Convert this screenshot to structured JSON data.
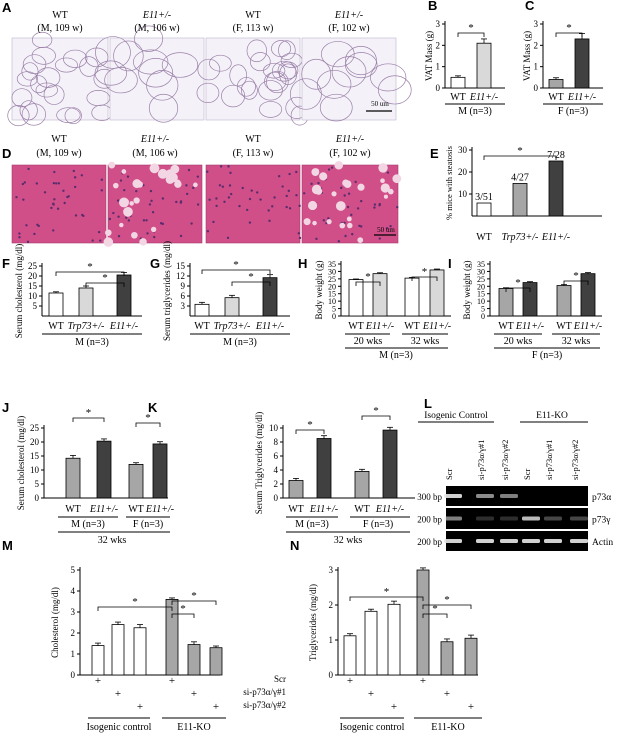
{
  "colors": {
    "white": "#ffffff",
    "light": "#d9d9d9",
    "mid": "#a6a6a6",
    "dark": "#404040",
    "gel": "#000000",
    "band": "#e8e8e8",
    "adipose": "#f4f2f8",
    "liver": "#d04f88"
  },
  "chart_data": [
    {
      "id": "A",
      "label": "A",
      "type": "image",
      "description_kind": "adipose histology",
      "panels": [
        {
          "line1": "WT",
          "line2": "(M, 109 w)"
        },
        {
          "line1": "E11+/-",
          "line2": "(M, 106 w)"
        },
        {
          "line1": "WT",
          "line2": "(F, 113 w)"
        },
        {
          "line1": "E11+/-",
          "line2": "(F, 102 w)"
        }
      ],
      "scale_bar": "50 um"
    },
    {
      "id": "B",
      "label": "B",
      "type": "bar",
      "ylabel": "VAT Mass (g)",
      "ylim": [
        0,
        3
      ],
      "yticks": [
        0,
        1,
        2,
        3
      ],
      "categories": [
        "WT",
        "E11+/-"
      ],
      "values": [
        0.5,
        2.1
      ],
      "errors": [
        0.07,
        0.2
      ],
      "group": "M (n=3)",
      "sig": "*"
    },
    {
      "id": "C",
      "label": "C",
      "type": "bar",
      "ylabel": "VAT Mass (g)",
      "ylim": [
        0,
        3
      ],
      "yticks": [
        0,
        1,
        2,
        3
      ],
      "categories": [
        "WT",
        "E11+/-"
      ],
      "values": [
        0.4,
        2.3
      ],
      "errors": [
        0.08,
        0.25
      ],
      "group": "F (n=3)",
      "sig": "*"
    },
    {
      "id": "D",
      "label": "D",
      "type": "image",
      "panels": [
        {
          "line1": "WT",
          "line2": "(M, 109 w)"
        },
        {
          "line1": "E11+/-",
          "line2": "(M, 106 w)"
        },
        {
          "line1": "WT",
          "line2": "(F, 113 w)"
        },
        {
          "line1": "E11+/-",
          "line2": "(F,  102 w)"
        }
      ],
      "scale_bar": "50 um"
    },
    {
      "id": "E",
      "label": "E",
      "type": "bar",
      "ylabel": "% mice with steatosis",
      "ylim": [
        0,
        30
      ],
      "yticks": [
        10,
        20,
        30
      ],
      "categories": [
        "WT",
        "Trp73+/-",
        "E11+/-"
      ],
      "values": [
        5.9,
        14.8,
        25
      ],
      "data_labels": [
        "3/51",
        "4/27",
        "7/28"
      ],
      "sig": "*"
    },
    {
      "id": "F",
      "label": "F",
      "type": "bar",
      "ylabel": "Serum cholesterol (mg/dl)",
      "ylim": [
        0,
        25
      ],
      "yticks": [
        5,
        10,
        15,
        20,
        25
      ],
      "categories": [
        "WT",
        "Trp73+/-",
        "E11+/-"
      ],
      "values": [
        11.5,
        14,
        20.5
      ],
      "errors": [
        0.6,
        1.0,
        1.3
      ],
      "group": "M (n=3)",
      "sig": [
        "*",
        "*"
      ]
    },
    {
      "id": "G",
      "label": "G",
      "type": "bar",
      "ylabel": "Serum triglycerides (mg/dl)",
      "ylim": [
        0,
        15
      ],
      "yticks": [
        3,
        6,
        9,
        12,
        15
      ],
      "categories": [
        "WT",
        "Trp73+/-",
        "E11+/-"
      ],
      "values": [
        3.5,
        5.5,
        11.5
      ],
      "errors": [
        0.6,
        0.7,
        0.9
      ],
      "group": "M (n=3)",
      "sig": [
        "*",
        "*"
      ]
    },
    {
      "id": "H",
      "label": "H",
      "type": "bar",
      "ylabel": "Body weight (g)",
      "ylim": [
        0,
        35
      ],
      "yticks": [
        0,
        5,
        10,
        15,
        20,
        25,
        30,
        35
      ],
      "categories": [
        "WT",
        "E11+/-",
        "WT",
        "E11+/-"
      ],
      "values": [
        24.5,
        28.5,
        25.5,
        31
      ],
      "errors": [
        0.4,
        0.6,
        0.5,
        0.6
      ],
      "groups": [
        "20 wks",
        "32 wks"
      ],
      "group": "M (n=3)",
      "sig": [
        "*",
        "*"
      ]
    },
    {
      "id": "I",
      "label": "I",
      "type": "bar",
      "ylabel": "Body weight (g)",
      "ylim": [
        0,
        35
      ],
      "yticks": [
        0,
        5,
        10,
        15,
        20,
        25,
        30,
        35
      ],
      "categories": [
        "WT",
        "E11+/-",
        "WT",
        "E11+/-"
      ],
      "values": [
        18.5,
        22.5,
        20.5,
        28.5
      ],
      "errors": [
        0.5,
        0.6,
        0.6,
        0.7
      ],
      "groups": [
        "20 wks",
        "32 wks"
      ],
      "group": "F (n=3)",
      "sig": [
        "*",
        "*"
      ]
    },
    {
      "id": "J",
      "label": "J",
      "type": "bar",
      "ylabel": "Serum cholesterol (mg/dl)",
      "ylim": [
        0,
        25
      ],
      "yticks": [
        0,
        5,
        10,
        15,
        20,
        25
      ],
      "categories": [
        "WT",
        "E11+/-",
        "WT",
        "E11+/-"
      ],
      "values": [
        14.2,
        20.3,
        12,
        19.3
      ],
      "errors": [
        1.0,
        0.8,
        0.6,
        0.8
      ],
      "groups": [
        "M (n=3)",
        "F (n=3)"
      ],
      "footer": "32 wks",
      "sig": [
        "*",
        "*"
      ]
    },
    {
      "id": "K",
      "label": "K",
      "type": "bar",
      "ylabel": "Serum Triglycerides (mg/dl)",
      "ylim": [
        0,
        10
      ],
      "yticks": [
        0,
        2,
        4,
        6,
        8,
        10
      ],
      "categories": [
        "WT",
        "E11+/-",
        "WT",
        "E11+/-"
      ],
      "values": [
        2.5,
        8.5,
        3.8,
        9.7
      ],
      "errors": [
        0.3,
        0.4,
        0.3,
        0.4
      ],
      "groups": [
        "M (n=3)",
        "F (n=3)"
      ],
      "footer": "32 wks",
      "sig": [
        "*",
        "*"
      ]
    },
    {
      "id": "L",
      "label": "L",
      "type": "gel",
      "groups": [
        "Isogenic Control",
        "E11-KO"
      ],
      "lanes": [
        "Scr",
        "si-p73α/γ#1",
        "si-p73α/γ#2",
        "Scr",
        "si-p73α/γ#1",
        "si-p73α/γ#2"
      ],
      "rows": [
        {
          "bp": "300 bp",
          "name": "p73α",
          "intensity": [
            0.9,
            0.6,
            0.55,
            0,
            0,
            0
          ]
        },
        {
          "bp": "200 bp",
          "name": "p73γ",
          "intensity": [
            0.55,
            0.2,
            0.2,
            0.8,
            0.3,
            0.3
          ]
        },
        {
          "bp": "200 bp",
          "name": "Actin",
          "intensity": [
            0.9,
            0.9,
            0.9,
            0.9,
            0.9,
            0.9
          ]
        }
      ]
    },
    {
      "id": "M",
      "label": "M",
      "type": "bar",
      "ylabel": "Cholesterol (mg/dl)",
      "ylim": [
        0,
        5
      ],
      "yticks": [
        0,
        1,
        2,
        3,
        4,
        5
      ],
      "values": [
        1.4,
        2.4,
        2.25,
        3.6,
        1.45,
        1.3
      ],
      "errors": [
        0.12,
        0.12,
        0.15,
        0.07,
        0.13,
        0.08
      ],
      "sig": [
        "*",
        "*",
        "*"
      ]
    },
    {
      "id": "N",
      "label": "N",
      "type": "bar",
      "ylabel": "Triglycerides (mg/dl)",
      "ylim": [
        0,
        3
      ],
      "yticks": [
        0,
        1,
        2,
        3
      ],
      "values": [
        1.12,
        1.82,
        2.02,
        3.0,
        0.95,
        1.05
      ],
      "errors": [
        0.06,
        0.06,
        0.09,
        0.06,
        0.08,
        0.09
      ],
      "sig": [
        "*",
        "*",
        "*"
      ]
    }
  ],
  "treatment_rows": [
    "Scr",
    "si-p73α/γ#1",
    "si-p73α/γ#2"
  ],
  "treatment_groups": [
    "Isogenic control",
    "E11-KO"
  ]
}
